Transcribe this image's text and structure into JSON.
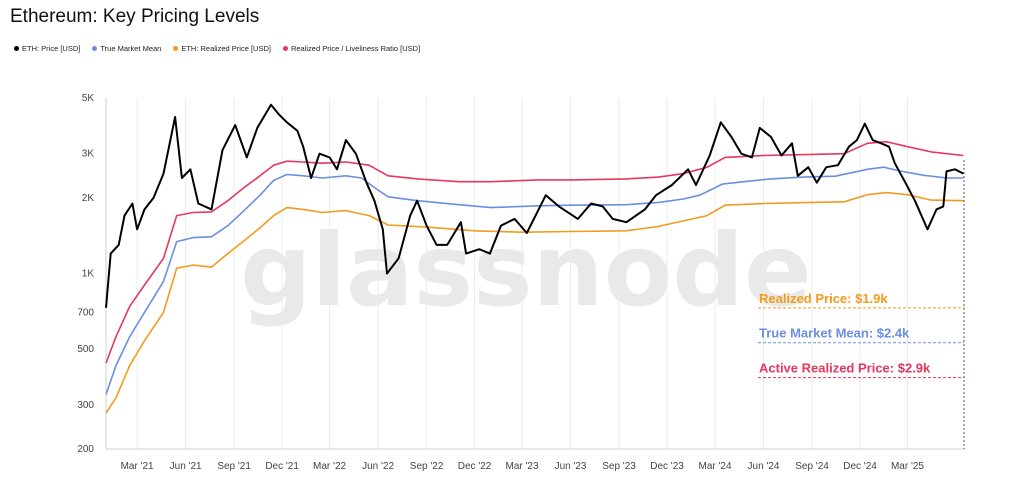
{
  "chart_data": {
    "type": "line",
    "title": "Ethereum: Key Pricing Levels",
    "watermark": "glassnode",
    "y_scale": "log",
    "ylim": [
      200,
      5000
    ],
    "y_ticks": [
      {
        "value": 200,
        "label": "200"
      },
      {
        "value": 300,
        "label": "300"
      },
      {
        "value": 500,
        "label": "500"
      },
      {
        "value": 700,
        "label": "700"
      },
      {
        "value": 1000,
        "label": "1K"
      },
      {
        "value": 2000,
        "label": "2K"
      },
      {
        "value": 3000,
        "label": "3K"
      },
      {
        "value": 5000,
        "label": "5K"
      }
    ],
    "xlim": [
      "2021-01-01",
      "2025-06-20"
    ],
    "x_ticks": [
      {
        "date": "2021-03-01",
        "label": "Mar '21"
      },
      {
        "date": "2021-06-01",
        "label": "Jun '21"
      },
      {
        "date": "2021-09-01",
        "label": "Sep '21"
      },
      {
        "date": "2021-12-01",
        "label": "Dec '21"
      },
      {
        "date": "2022-03-01",
        "label": "Mar '22"
      },
      {
        "date": "2022-06-01",
        "label": "Jun '22"
      },
      {
        "date": "2022-09-01",
        "label": "Sep '22"
      },
      {
        "date": "2022-12-01",
        "label": "Dec '22"
      },
      {
        "date": "2023-03-01",
        "label": "Mar '23"
      },
      {
        "date": "2023-06-01",
        "label": "Jun '23"
      },
      {
        "date": "2023-09-01",
        "label": "Sep '23"
      },
      {
        "date": "2023-12-01",
        "label": "Dec '23"
      },
      {
        "date": "2024-03-01",
        "label": "Mar '24"
      },
      {
        "date": "2024-06-01",
        "label": "Jun '24"
      },
      {
        "date": "2024-09-01",
        "label": "Sep '24"
      },
      {
        "date": "2024-12-01",
        "label": "Dec '24"
      },
      {
        "date": "2025-03-01",
        "label": "Mar '25"
      }
    ],
    "legend_position": "top-left",
    "series": [
      {
        "name": "ETH: Price [USD]",
        "color": "#000000",
        "points": [
          [
            "2021-01-01",
            730
          ],
          [
            "2021-01-10",
            1200
          ],
          [
            "2021-01-25",
            1300
          ],
          [
            "2021-02-05",
            1700
          ],
          [
            "2021-02-20",
            1900
          ],
          [
            "2021-03-01",
            1500
          ],
          [
            "2021-03-15",
            1800
          ],
          [
            "2021-04-01",
            2000
          ],
          [
            "2021-04-20",
            2500
          ],
          [
            "2021-05-12",
            4200
          ],
          [
            "2021-05-25",
            2400
          ],
          [
            "2021-06-10",
            2600
          ],
          [
            "2021-06-25",
            1900
          ],
          [
            "2021-07-20",
            1800
          ],
          [
            "2021-08-10",
            3100
          ],
          [
            "2021-09-03",
            3900
          ],
          [
            "2021-09-25",
            2900
          ],
          [
            "2021-10-15",
            3800
          ],
          [
            "2021-11-10",
            4700
          ],
          [
            "2021-11-25",
            4300
          ],
          [
            "2021-12-10",
            4000
          ],
          [
            "2021-12-30",
            3700
          ],
          [
            "2022-01-10",
            3200
          ],
          [
            "2022-01-25",
            2400
          ],
          [
            "2022-02-10",
            3000
          ],
          [
            "2022-03-01",
            2900
          ],
          [
            "2022-03-15",
            2600
          ],
          [
            "2022-04-01",
            3400
          ],
          [
            "2022-04-20",
            3000
          ],
          [
            "2022-05-10",
            2300
          ],
          [
            "2022-05-25",
            1950
          ],
          [
            "2022-06-10",
            1500
          ],
          [
            "2022-06-18",
            1000
          ],
          [
            "2022-07-10",
            1150
          ],
          [
            "2022-08-01",
            1700
          ],
          [
            "2022-08-14",
            1950
          ],
          [
            "2022-09-01",
            1550
          ],
          [
            "2022-09-20",
            1300
          ],
          [
            "2022-10-10",
            1300
          ],
          [
            "2022-11-05",
            1600
          ],
          [
            "2022-11-15",
            1200
          ],
          [
            "2022-12-10",
            1250
          ],
          [
            "2022-12-30",
            1200
          ],
          [
            "2023-01-20",
            1550
          ],
          [
            "2023-02-15",
            1650
          ],
          [
            "2023-03-10",
            1450
          ],
          [
            "2023-04-15",
            2050
          ],
          [
            "2023-05-10",
            1850
          ],
          [
            "2023-06-15",
            1650
          ],
          [
            "2023-07-10",
            1900
          ],
          [
            "2023-08-01",
            1850
          ],
          [
            "2023-08-20",
            1650
          ],
          [
            "2023-09-15",
            1600
          ],
          [
            "2023-10-20",
            1800
          ],
          [
            "2023-11-10",
            2050
          ],
          [
            "2023-12-10",
            2250
          ],
          [
            "2024-01-10",
            2600
          ],
          [
            "2024-01-25",
            2250
          ],
          [
            "2024-02-20",
            2950
          ],
          [
            "2024-03-12",
            4000
          ],
          [
            "2024-04-01",
            3500
          ],
          [
            "2024-04-20",
            3000
          ],
          [
            "2024-05-10",
            2900
          ],
          [
            "2024-05-25",
            3800
          ],
          [
            "2024-06-15",
            3500
          ],
          [
            "2024-07-05",
            2950
          ],
          [
            "2024-07-25",
            3300
          ],
          [
            "2024-08-05",
            2450
          ],
          [
            "2024-08-25",
            2650
          ],
          [
            "2024-09-10",
            2300
          ],
          [
            "2024-09-28",
            2650
          ],
          [
            "2024-10-20",
            2700
          ],
          [
            "2024-11-10",
            3200
          ],
          [
            "2024-11-25",
            3400
          ],
          [
            "2024-12-10",
            3950
          ],
          [
            "2024-12-25",
            3400
          ],
          [
            "2025-01-10",
            3300
          ],
          [
            "2025-01-25",
            3200
          ],
          [
            "2025-02-05",
            2750
          ],
          [
            "2025-02-25",
            2300
          ],
          [
            "2025-03-15",
            1950
          ],
          [
            "2025-04-08",
            1500
          ],
          [
            "2025-04-25",
            1800
          ],
          [
            "2025-05-08",
            1850
          ],
          [
            "2025-05-14",
            2550
          ],
          [
            "2025-05-30",
            2600
          ],
          [
            "2025-06-15",
            2500
          ]
        ]
      },
      {
        "name": "True Market Mean",
        "color": "#6b8fe0",
        "points": [
          [
            "2021-01-01",
            330
          ],
          [
            "2021-01-20",
            430
          ],
          [
            "2021-02-15",
            560
          ],
          [
            "2021-03-15",
            700
          ],
          [
            "2021-04-20",
            930
          ],
          [
            "2021-05-15",
            1340
          ],
          [
            "2021-06-15",
            1390
          ],
          [
            "2021-07-20",
            1400
          ],
          [
            "2021-08-20",
            1550
          ],
          [
            "2021-09-20",
            1780
          ],
          [
            "2021-10-20",
            2050
          ],
          [
            "2021-11-15",
            2350
          ],
          [
            "2021-12-10",
            2480
          ],
          [
            "2022-01-10",
            2450
          ],
          [
            "2022-02-15",
            2400
          ],
          [
            "2022-04-01",
            2450
          ],
          [
            "2022-05-01",
            2400
          ],
          [
            "2022-05-25",
            2200
          ],
          [
            "2022-06-20",
            2020
          ],
          [
            "2022-08-15",
            1950
          ],
          [
            "2022-11-01",
            1880
          ],
          [
            "2023-01-01",
            1830
          ],
          [
            "2023-04-01",
            1860
          ],
          [
            "2023-06-01",
            1870
          ],
          [
            "2023-09-15",
            1880
          ],
          [
            "2023-11-15",
            1920
          ],
          [
            "2024-01-01",
            1980
          ],
          [
            "2024-02-01",
            2050
          ],
          [
            "2024-03-15",
            2270
          ],
          [
            "2024-05-01",
            2330
          ],
          [
            "2024-06-15",
            2380
          ],
          [
            "2024-08-15",
            2420
          ],
          [
            "2024-10-15",
            2440
          ],
          [
            "2024-12-15",
            2600
          ],
          [
            "2025-01-15",
            2650
          ],
          [
            "2025-02-15",
            2560
          ],
          [
            "2025-04-01",
            2460
          ],
          [
            "2025-05-15",
            2400
          ],
          [
            "2025-06-15",
            2400
          ]
        ]
      },
      {
        "name": "ETH: Realized Price [USD]",
        "color": "#f39a1f",
        "points": [
          [
            "2021-01-01",
            278
          ],
          [
            "2021-01-20",
            320
          ],
          [
            "2021-02-15",
            430
          ],
          [
            "2021-03-15",
            540
          ],
          [
            "2021-04-20",
            700
          ],
          [
            "2021-05-15",
            1050
          ],
          [
            "2021-06-15",
            1080
          ],
          [
            "2021-07-20",
            1060
          ],
          [
            "2021-08-20",
            1200
          ],
          [
            "2021-09-20",
            1350
          ],
          [
            "2021-10-20",
            1520
          ],
          [
            "2021-11-15",
            1700
          ],
          [
            "2021-12-10",
            1830
          ],
          [
            "2022-01-10",
            1800
          ],
          [
            "2022-02-15",
            1750
          ],
          [
            "2022-04-01",
            1780
          ],
          [
            "2022-05-15",
            1700
          ],
          [
            "2022-06-20",
            1560
          ],
          [
            "2022-09-01",
            1530
          ],
          [
            "2022-12-01",
            1480
          ],
          [
            "2023-03-01",
            1460
          ],
          [
            "2023-06-01",
            1470
          ],
          [
            "2023-09-15",
            1480
          ],
          [
            "2023-11-15",
            1540
          ],
          [
            "2024-01-01",
            1620
          ],
          [
            "2024-02-15",
            1700
          ],
          [
            "2024-03-20",
            1870
          ],
          [
            "2024-06-01",
            1900
          ],
          [
            "2024-09-01",
            1920
          ],
          [
            "2024-11-01",
            1930
          ],
          [
            "2024-12-15",
            2060
          ],
          [
            "2025-01-20",
            2100
          ],
          [
            "2025-03-01",
            2060
          ],
          [
            "2025-04-15",
            1960
          ],
          [
            "2025-06-15",
            1950
          ]
        ]
      },
      {
        "name": "Realized Price / Liveliness Ratio [USD]",
        "color": "#e8365e",
        "points": [
          [
            "2021-01-01",
            440
          ],
          [
            "2021-01-20",
            560
          ],
          [
            "2021-02-15",
            740
          ],
          [
            "2021-03-15",
            900
          ],
          [
            "2021-04-20",
            1150
          ],
          [
            "2021-05-15",
            1700
          ],
          [
            "2021-06-15",
            1750
          ],
          [
            "2021-07-20",
            1760
          ],
          [
            "2021-08-20",
            1950
          ],
          [
            "2021-09-20",
            2200
          ],
          [
            "2021-10-20",
            2450
          ],
          [
            "2021-11-15",
            2700
          ],
          [
            "2021-12-10",
            2800
          ],
          [
            "2022-01-10",
            2780
          ],
          [
            "2022-02-15",
            2750
          ],
          [
            "2022-04-01",
            2780
          ],
          [
            "2022-05-15",
            2700
          ],
          [
            "2022-06-20",
            2450
          ],
          [
            "2022-08-15",
            2380
          ],
          [
            "2022-11-01",
            2320
          ],
          [
            "2023-01-01",
            2320
          ],
          [
            "2023-04-01",
            2360
          ],
          [
            "2023-06-01",
            2360
          ],
          [
            "2023-09-15",
            2380
          ],
          [
            "2023-11-15",
            2420
          ],
          [
            "2024-01-01",
            2500
          ],
          [
            "2024-02-15",
            2650
          ],
          [
            "2024-03-20",
            2900
          ],
          [
            "2024-06-01",
            2950
          ],
          [
            "2024-09-01",
            2980
          ],
          [
            "2024-11-01",
            3000
          ],
          [
            "2024-12-15",
            3300
          ],
          [
            "2025-01-20",
            3350
          ],
          [
            "2025-03-01",
            3200
          ],
          [
            "2025-04-15",
            3050
          ],
          [
            "2025-06-15",
            2950
          ]
        ]
      }
    ],
    "annotations": [
      {
        "text": "Realized Price: $1.9k",
        "color": "#f39a1f",
        "value": 730
      },
      {
        "text": "True Market Mean: $2.4k",
        "color": "#6b8fe0",
        "value": 530
      },
      {
        "text": "Active Realized Price: $2.9k",
        "color": "#e8365e",
        "value": 385
      }
    ]
  }
}
